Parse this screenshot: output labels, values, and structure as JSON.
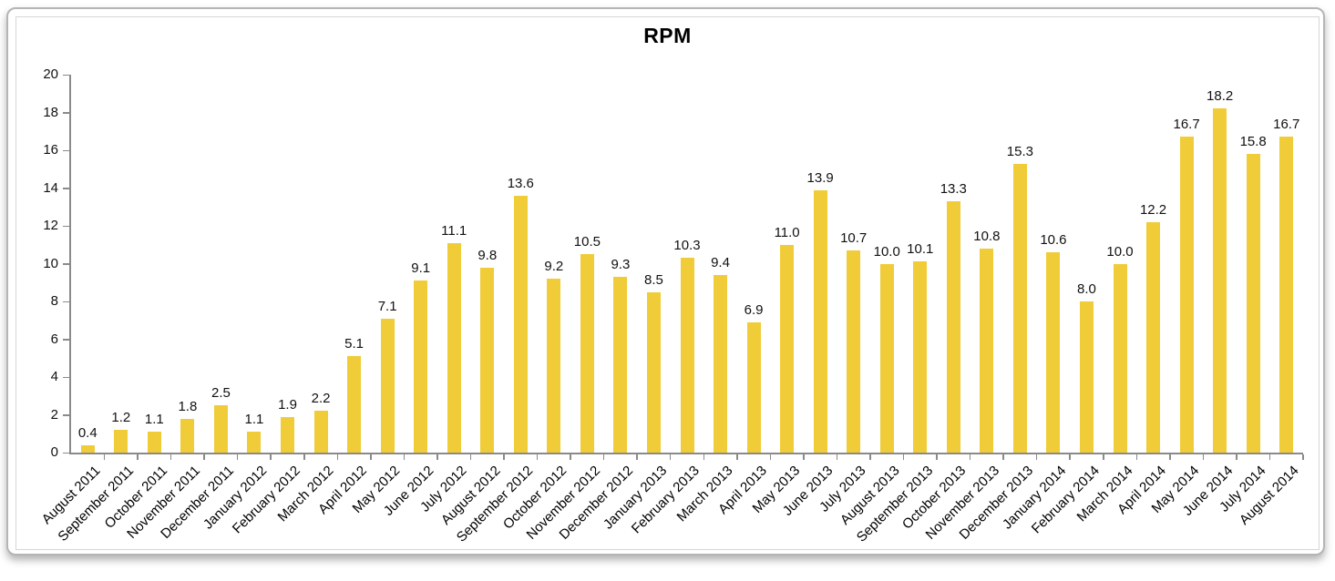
{
  "chart_data": {
    "type": "bar",
    "title": "RPM",
    "categories": [
      "August 2011",
      "September 2011",
      "October 2011",
      "November 2011",
      "December 2011",
      "January 2012",
      "February 2012",
      "March 2012",
      "April 2012",
      "May 2012",
      "June 2012",
      "July 2012",
      "August 2012",
      "September 2012",
      "October 2012",
      "November 2012",
      "December 2012",
      "January 2013",
      "February 2013",
      "March 2013",
      "April 2013",
      "May 2013",
      "June 2013",
      "July 2013",
      "August 2013",
      "September 2013",
      "October 2013",
      "November 2013",
      "December 2013",
      "January 2014",
      "February 2014",
      "March 2014",
      "April 2014",
      "May 2014",
      "June 2014",
      "July 2014",
      "August 2014"
    ],
    "values": [
      0.4,
      1.2,
      1.1,
      1.8,
      2.5,
      1.1,
      1.9,
      2.2,
      5.1,
      7.1,
      9.1,
      11.1,
      9.8,
      13.6,
      9.2,
      10.5,
      9.3,
      8.5,
      10.3,
      9.4,
      6.9,
      11.0,
      13.9,
      10.7,
      10.0,
      10.1,
      13.3,
      10.8,
      15.3,
      10.6,
      8.0,
      10.0,
      12.2,
      16.7,
      18.2,
      15.8,
      16.7
    ],
    "value_label_decimals": 1,
    "xlabel": "",
    "ylabel": "",
    "ylim": [
      0,
      20
    ],
    "yticks": [
      0,
      2,
      4,
      6,
      8,
      10,
      12,
      14,
      16,
      18,
      20
    ],
    "grid": false,
    "legend": "none",
    "bar_color": "#F0CC38",
    "axis_color": "#8a8a8a",
    "value_label_color": "#111111",
    "category_label_color": "#000000"
  },
  "frame": {
    "outer_border_color": "#b5b5b5",
    "inner_border_color": "#d6d6d6",
    "background": "#ffffff"
  }
}
